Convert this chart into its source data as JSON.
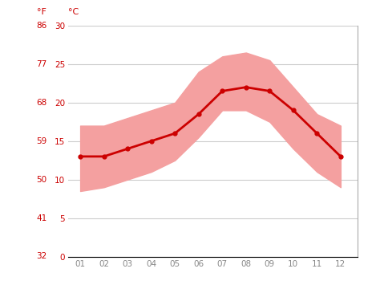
{
  "months": [
    1,
    2,
    3,
    4,
    5,
    6,
    7,
    8,
    9,
    10,
    11,
    12
  ],
  "month_labels": [
    "01",
    "02",
    "03",
    "04",
    "05",
    "06",
    "07",
    "08",
    "09",
    "10",
    "11",
    "12"
  ],
  "avg_temp_c": [
    13,
    13,
    14,
    15,
    16,
    18.5,
    21.5,
    22,
    21.5,
    19,
    16,
    13
  ],
  "temp_min_c": [
    8.5,
    9,
    10,
    11,
    12.5,
    15.5,
    19,
    19,
    17.5,
    14,
    11,
    9
  ],
  "temp_max_c": [
    17,
    17,
    18,
    19,
    20,
    24,
    26,
    26.5,
    25.5,
    22,
    18.5,
    17
  ],
  "line_color": "#cc0000",
  "band_color": "#f4a0a0",
  "marker_color": "#cc0000",
  "background_color": "#ffffff",
  "grid_color": "#cccccc",
  "axis_label_color": "#cc0000",
  "tick_color": "#888888",
  "yticks_c": [
    0,
    5,
    10,
    15,
    20,
    25,
    30
  ],
  "yticks_f": [
    32,
    41,
    50,
    59,
    68,
    77,
    86
  ],
  "ylim_c": [
    0,
    30
  ],
  "label_f": "°F",
  "label_c": "°C",
  "figsize": [
    4.74,
    3.55
  ],
  "dpi": 100
}
